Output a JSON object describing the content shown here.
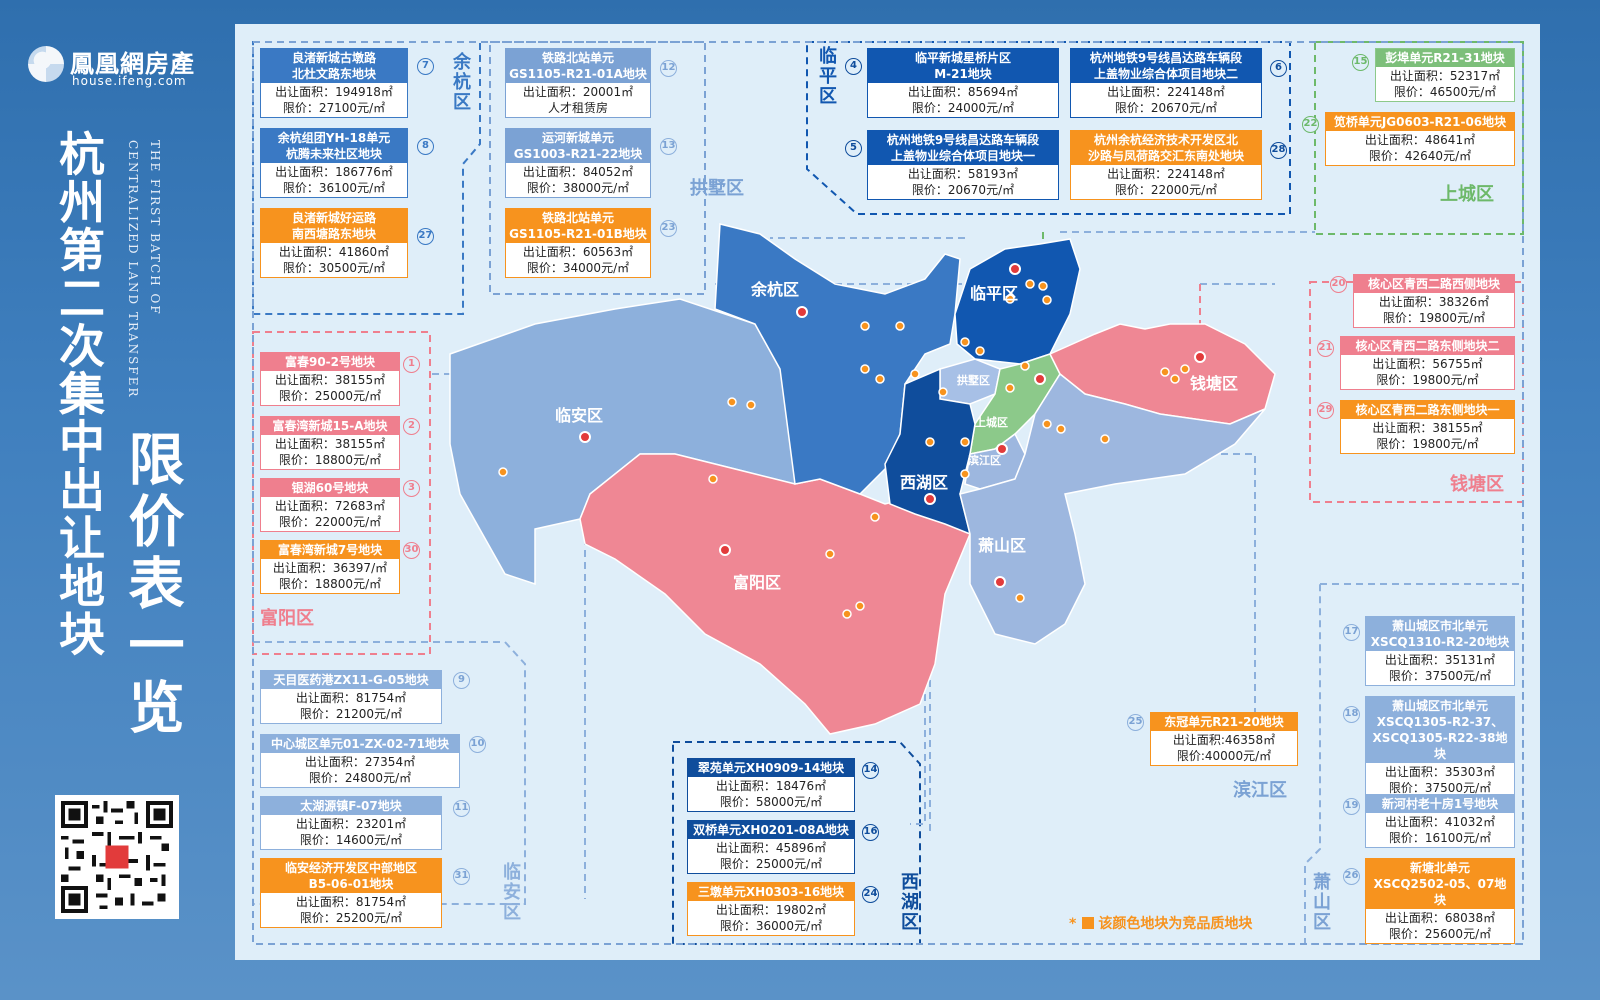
{
  "brand": {
    "name": "鳳凰網房產",
    "url": "house.ifeng.com"
  },
  "title": {
    "main": "杭州第二次集中出让地块",
    "sub": "限价表一览",
    "en_line1": "THE FIRST BATCH OF",
    "en_line2": "CENTRALIZED LAND TRANSFER"
  },
  "legend": {
    "star": "*",
    "text": "该颜色地块为竞品质地块",
    "color": "#f7931e"
  },
  "district_labels": {
    "yuhang": "余杭区",
    "gongshu": "拱墅区",
    "linping": "临平区",
    "shangcheng": "上城区",
    "fuyang": "富阳区",
    "qiantang": "钱塘区",
    "linan": "临安区",
    "xihu": "西湖区",
    "binjiang": "滨江区",
    "xiaoshan": "萧山区"
  },
  "map_labels": {
    "yuhang": "余杭区",
    "linping": "临平区",
    "linan": "临安区",
    "fuyang": "富阳区",
    "xihu": "西湖区",
    "xiaoshan": "萧山区",
    "qiantang": "钱塘区",
    "gongshu": "拱墅区",
    "shangcheng": "上城区",
    "binjiang": "滨江区"
  },
  "colors": {
    "yuhang": "#3a79c4",
    "linping": "#1157b0",
    "xihu": "#0f4d9c",
    "linan": "#8db0dc",
    "fuyang": "#ef8794",
    "qiantang": "#ef8794",
    "xiaoshan": "#9db7df",
    "shangcheng": "#8cc98a",
    "gongshu": "#a7c0e6",
    "competitive": "#f7931e"
  },
  "parcels": {
    "p7": {
      "num": "7",
      "name": "良渚新城古墩路\n北杜文路东地块",
      "area": "出让面积：194918㎡",
      "price": "限价：27100元/㎡"
    },
    "p8": {
      "num": "8",
      "name": "余杭组团YH-18单元\n杭腾未来社区地块",
      "area": "出让面积：186776㎡",
      "price": "限价：36100元/㎡"
    },
    "p27": {
      "num": "27",
      "name": "良渚新城好运路\n南西塘路东地块",
      "area": "出让面积：41860㎡",
      "price": "限价：30500元/㎡"
    },
    "p12": {
      "num": "12",
      "name": "铁路北站单元\nGS1105-R21-01A地块",
      "area": "出让面积：20001㎡",
      "price": "人才租赁房"
    },
    "p13": {
      "num": "13",
      "name": "运河新城单元\nGS1003-R21-22地块",
      "area": "出让面积：84052㎡",
      "price": "限价：38000元/㎡"
    },
    "p23": {
      "num": "23",
      "name": "铁路北站单元\nGS1105-R21-01B地块",
      "area": "出让面积：60563㎡",
      "price": "限价：34000元/㎡"
    },
    "p4": {
      "num": "4",
      "name": "临平新城星桥片区\nM-21地块",
      "area": "出让面积：85694㎡",
      "price": "限价：24000元/㎡"
    },
    "p5": {
      "num": "5",
      "name": "杭州地铁9号线昌达路车辆段\n上盖物业综合体项目地块一",
      "area": "出让面积：58193㎡",
      "price": "限价：20670元/㎡"
    },
    "p6": {
      "num": "6",
      "name": "杭州地铁9号线昌达路车辆段\n上盖物业综合体项目地块二",
      "area": "出让面积：224148㎡",
      "price": "限价：20670元/㎡"
    },
    "p28": {
      "num": "28",
      "name": "杭州余杭经济技术开发区北\n沙路与凤荷路交汇东南处地块",
      "area": "出让面积：224148㎡",
      "price": "限价：22000元/㎡"
    },
    "p15": {
      "num": "15",
      "name": "彭埠单元R21-31地块",
      "area": "出让面积：52317㎡",
      "price": "限价：46500元/㎡"
    },
    "p22": {
      "num": "22",
      "name": "笕桥单元JG0603-R21-06地块",
      "area": "出让面积：48641㎡",
      "price": "限价：42640元/㎡"
    },
    "p1": {
      "num": "1",
      "name": "富春90-2号地块",
      "area": "出让面积：38155㎡",
      "price": "限价：25000元/㎡"
    },
    "p2": {
      "num": "2",
      "name": "富春湾新城15-A地块",
      "area": "出让面积：38155㎡",
      "price": "限价：18800元/㎡"
    },
    "p3": {
      "num": "3",
      "name": "银湖60号地块",
      "area": "出让面积：72683㎡",
      "price": "限价：22000元/㎡"
    },
    "p30": {
      "num": "30",
      "name": "富春湾新城7号地块",
      "area": "出让面积：36397/㎡",
      "price": "限价：18800元/㎡"
    },
    "p20": {
      "num": "20",
      "name": "核心区青西二路西侧地块",
      "area": "出让面积：38326㎡",
      "price": "限价：19800元/㎡"
    },
    "p21": {
      "num": "21",
      "name": "核心区青西二路东侧地块二",
      "area": "出让面积：56755㎡",
      "price": "限价：19800元/㎡"
    },
    "p29": {
      "num": "29",
      "name": "核心区青西二路东侧地块一",
      "area": "出让面积：38155㎡",
      "price": "限价：19800元/㎡"
    },
    "p9": {
      "num": "9",
      "name": "天目医药港ZX11-G-05地块",
      "area": "出让面积：81754㎡",
      "price": "限价：21200元/㎡"
    },
    "p10": {
      "num": "10",
      "name": "中心城区单元01-ZX-02-71地块",
      "area": "出让面积：27354㎡",
      "price": "限价：24800元/㎡"
    },
    "p11": {
      "num": "11",
      "name": "太湖源镇F-07地块",
      "area": "出让面积：23201㎡",
      "price": "限价：14600元/㎡"
    },
    "p31": {
      "num": "31",
      "name": "临安经济开发区中部地区\nB5-06-01地块",
      "area": "出让面积：81754㎡",
      "price": "限价：25200元/㎡"
    },
    "p14": {
      "num": "14",
      "name": "翠苑单元XH0909-14地块",
      "area": "出让面积：18476㎡",
      "price": "限价：58000元/㎡"
    },
    "p16": {
      "num": "16",
      "name": "双桥单元XH0201-08A地块",
      "area": "出让面积：45896㎡",
      "price": "限价：25000元/㎡"
    },
    "p24": {
      "num": "24",
      "name": "三墩单元XH0303-16地块",
      "area": "出让面积：19802㎡",
      "price": "限价：36000元/㎡"
    },
    "p25": {
      "num": "25",
      "name": "东冠单元R21-20地块",
      "area": "出让面积:46358㎡",
      "price": "限价:40000元/㎡"
    },
    "p17": {
      "num": "17",
      "name": "萧山城区市北单元\nXSCQ1310-R2-20地块",
      "area": "出让面积：35131㎡",
      "price": "限价：37500元/㎡"
    },
    "p18": {
      "num": "18",
      "name": "萧山城区市北单元\nXSCQ1305-R2-37、\nXSCQ1305-R22-38地块",
      "area": "出让面积：35303㎡",
      "price": "限价：37500元/㎡"
    },
    "p19": {
      "num": "19",
      "name": "新河村老十房1号地块",
      "area": "出让面积：41032㎡",
      "price": "限价：16100元/㎡"
    },
    "p26": {
      "num": "26",
      "name": "新塘北单元\nXSCQ2502-05、07地块",
      "area": "出让面积：68038㎡",
      "price": "限价：25600元/㎡"
    }
  },
  "map_pins": [
    "1",
    "2",
    "3",
    "4",
    "5",
    "6",
    "7",
    "8",
    "9",
    "10",
    "11",
    "12",
    "13",
    "14",
    "15",
    "16",
    "17",
    "18",
    "19",
    "20",
    "21",
    "22",
    "23",
    "24",
    "25",
    "26",
    "27",
    "28",
    "29",
    "30",
    "31"
  ]
}
